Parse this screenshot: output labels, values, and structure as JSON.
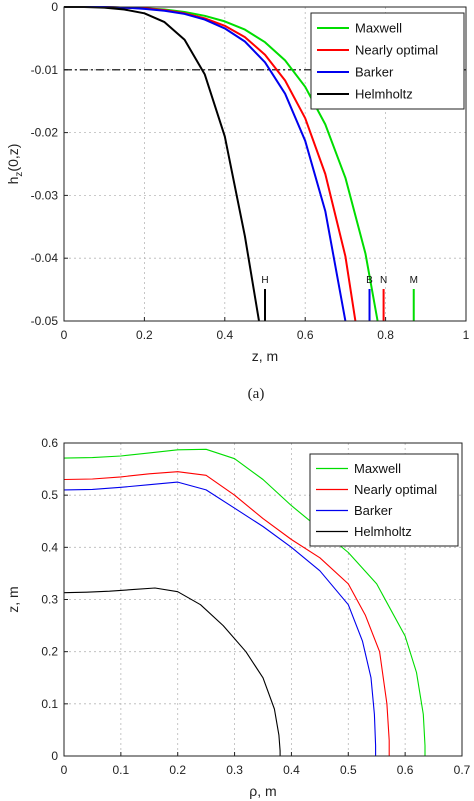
{
  "chart_data": [
    {
      "type": "line",
      "xlabel": "z, m",
      "ylabel_main": "h",
      "ylabel_sub": "z",
      "ylabel_rest": "(0,z)",
      "xlim": [
        0,
        1
      ],
      "ylim": [
        -0.05,
        0
      ],
      "xticks": [
        "0",
        "0.2",
        "0.4",
        "0.6",
        "0.8",
        "1"
      ],
      "yticks": [
        "0",
        "-0.01",
        "-0.02",
        "-0.03",
        "-0.04",
        "-0.05"
      ],
      "grid": true,
      "legend_position": "top-right",
      "reference_line": {
        "y": -0.01,
        "style": "dash-dot"
      },
      "series": [
        {
          "name": "Maxwell",
          "color": "#00dd00",
          "x": [
            0,
            0.05,
            0.1,
            0.15,
            0.2,
            0.25,
            0.3,
            0.35,
            0.4,
            0.45,
            0.5,
            0.55,
            0.6,
            0.65,
            0.7,
            0.75,
            0.78
          ],
          "y": [
            0,
            0,
            0,
            -0.0001,
            -0.0002,
            -0.0004,
            -0.0008,
            -0.0014,
            -0.0023,
            -0.0036,
            -0.0056,
            -0.0085,
            -0.0127,
            -0.0187,
            -0.0272,
            -0.0393,
            -0.05
          ]
        },
        {
          "name": "Nearly optimal",
          "color": "#ff0000",
          "x": [
            0,
            0.05,
            0.1,
            0.15,
            0.2,
            0.25,
            0.3,
            0.35,
            0.4,
            0.45,
            0.5,
            0.55,
            0.6,
            0.65,
            0.7,
            0.725
          ],
          "y": [
            0,
            0,
            0,
            -0.0001,
            -0.0002,
            -0.0005,
            -0.001,
            -0.0018,
            -0.003,
            -0.0048,
            -0.0076,
            -0.0117,
            -0.0177,
            -0.0266,
            -0.0397,
            -0.05
          ]
        },
        {
          "name": "Barker",
          "color": "#0000ee",
          "x": [
            0,
            0.05,
            0.1,
            0.15,
            0.2,
            0.25,
            0.3,
            0.35,
            0.4,
            0.45,
            0.5,
            0.55,
            0.6,
            0.65,
            0.7
          ],
          "y": [
            0,
            0,
            0,
            -0.0001,
            -0.0003,
            -0.0006,
            -0.0011,
            -0.002,
            -0.0034,
            -0.0055,
            -0.0088,
            -0.0138,
            -0.0213,
            -0.0325,
            -0.05
          ]
        },
        {
          "name": "Helmholtz",
          "color": "#000000",
          "x": [
            0,
            0.05,
            0.1,
            0.15,
            0.2,
            0.25,
            0.3,
            0.35,
            0.4,
            0.45,
            0.485
          ],
          "y": [
            0,
            0,
            -0.0001,
            -0.0004,
            -0.001,
            -0.0024,
            -0.0052,
            -0.0107,
            -0.0206,
            -0.0365,
            -0.05
          ]
        }
      ],
      "markers": [
        {
          "label": "H",
          "x": 0.5,
          "color": "#000000"
        },
        {
          "label": "B",
          "x": 0.76,
          "color": "#0000ee"
        },
        {
          "label": "N",
          "x": 0.795,
          "color": "#ff0000"
        },
        {
          "label": "M",
          "x": 0.87,
          "color": "#00dd00"
        }
      ]
    },
    {
      "type": "line",
      "xlabel": "ρ, m",
      "ylabel": "z, m",
      "xlim": [
        0,
        0.7
      ],
      "ylim": [
        0,
        0.6
      ],
      "xticks": [
        "0",
        "0.1",
        "0.2",
        "0.3",
        "0.4",
        "0.5",
        "0.6",
        "0.7"
      ],
      "yticks": [
        "0",
        "0.1",
        "0.2",
        "0.3",
        "0.4",
        "0.5",
        "0.6"
      ],
      "grid": true,
      "legend_position": "top-right",
      "series": [
        {
          "name": "Maxwell",
          "color": "#00dd00",
          "x": [
            0,
            0.05,
            0.1,
            0.15,
            0.2,
            0.25,
            0.3,
            0.35,
            0.4,
            0.45,
            0.5,
            0.55,
            0.6,
            0.62,
            0.632,
            0.635,
            0.635
          ],
          "y": [
            0.571,
            0.572,
            0.575,
            0.581,
            0.587,
            0.588,
            0.57,
            0.53,
            0.48,
            0.435,
            0.39,
            0.33,
            0.23,
            0.16,
            0.08,
            0.02,
            0
          ]
        },
        {
          "name": "Nearly optimal",
          "color": "#ff0000",
          "x": [
            0,
            0.05,
            0.1,
            0.15,
            0.2,
            0.25,
            0.3,
            0.35,
            0.4,
            0.45,
            0.5,
            0.53,
            0.555,
            0.568,
            0.572,
            0.572
          ],
          "y": [
            0.53,
            0.531,
            0.535,
            0.541,
            0.545,
            0.538,
            0.5,
            0.455,
            0.415,
            0.38,
            0.33,
            0.27,
            0.2,
            0.1,
            0.03,
            0
          ]
        },
        {
          "name": "Barker",
          "color": "#0000ee",
          "x": [
            0,
            0.05,
            0.1,
            0.15,
            0.2,
            0.25,
            0.3,
            0.35,
            0.4,
            0.45,
            0.5,
            0.525,
            0.54,
            0.546,
            0.548,
            0.548
          ],
          "y": [
            0.51,
            0.511,
            0.515,
            0.52,
            0.525,
            0.51,
            0.475,
            0.44,
            0.4,
            0.355,
            0.29,
            0.22,
            0.15,
            0.08,
            0.02,
            0
          ]
        },
        {
          "name": "Helmholtz",
          "color": "#000000",
          "x": [
            0,
            0.04,
            0.08,
            0.12,
            0.16,
            0.2,
            0.24,
            0.28,
            0.32,
            0.35,
            0.37,
            0.378,
            0.38,
            0.38
          ],
          "y": [
            0.313,
            0.314,
            0.316,
            0.319,
            0.322,
            0.315,
            0.29,
            0.25,
            0.2,
            0.15,
            0.09,
            0.04,
            0.01,
            0
          ]
        }
      ]
    }
  ],
  "caption": "(a)"
}
